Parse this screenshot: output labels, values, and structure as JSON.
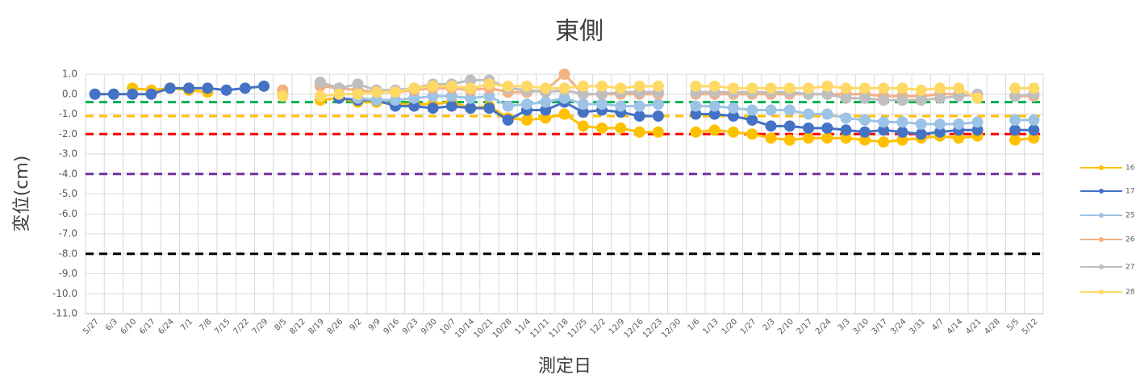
{
  "chart_data": {
    "type": "line",
    "title": "東側",
    "ylabel": "変位(cm)",
    "xlabel": "測定日",
    "categories": [
      "5/27",
      "6/3",
      "6/10",
      "6/17",
      "6/24",
      "7/1",
      "7/8",
      "7/15",
      "7/22",
      "7/29",
      "8/5",
      "8/12",
      "8/19",
      "8/26",
      "9/2",
      "9/9",
      "9/16",
      "9/23",
      "9/30",
      "10/7",
      "10/14",
      "10/21",
      "10/28",
      "11/4",
      "11/11",
      "11/18",
      "11/25",
      "12/2",
      "12/9",
      "12/16",
      "12/23",
      "12/30",
      "1/6",
      "1/13",
      "1/20",
      "1/27",
      "2/3",
      "2/10",
      "2/17",
      "2/24",
      "3/3",
      "3/10",
      "3/17",
      "3/24",
      "3/31",
      "4/7",
      "4/14",
      "4/21",
      "4/28",
      "5/5",
      "5/12"
    ],
    "ylim": [
      -11,
      1
    ],
    "yticks": [
      {
        "value": 1,
        "label": "1.0"
      },
      {
        "value": 0,
        "label": "0.0"
      },
      {
        "value": -1,
        "label": "-1.0"
      },
      {
        "value": -2,
        "label": "-2.0"
      },
      {
        "value": -3,
        "label": "-3.0"
      },
      {
        "value": -4,
        "label": "-4.0"
      },
      {
        "value": -5,
        "label": "-5.0"
      },
      {
        "value": -6,
        "label": "-6.0"
      },
      {
        "value": -7,
        "label": "-7.0"
      },
      {
        "value": -8,
        "label": "-8.0"
      },
      {
        "value": -9,
        "label": "-9.0"
      },
      {
        "value": -10,
        "label": "-10.0"
      },
      {
        "value": -11,
        "label": "-11.0"
      }
    ],
    "grid": true,
    "reference_lines": [
      {
        "value": -0.4,
        "color": "#00b050"
      },
      {
        "value": -1.1,
        "color": "#ffc000"
      },
      {
        "value": -2.0,
        "color": "#ff0000"
      },
      {
        "value": -4.0,
        "color": "#7030a0"
      },
      {
        "value": -8.0,
        "color": "#000000"
      }
    ],
    "series": [
      {
        "name": "16",
        "color": "#ffc000",
        "values": [
          null,
          null,
          0.3,
          0.2,
          0.3,
          0.2,
          0.1,
          null,
          null,
          null,
          0,
          null,
          -0.3,
          -0.2,
          -0.4,
          -0.4,
          -0.5,
          -0.5,
          -0.5,
          -0.4,
          -0.7,
          -0.6,
          -1.2,
          -1.3,
          -1.2,
          -1.0,
          -1.6,
          -1.7,
          -1.7,
          -1.9,
          -1.9,
          null,
          -1.9,
          -1.8,
          -1.9,
          -2.0,
          -2.2,
          -2.3,
          -2.2,
          -2.2,
          -2.2,
          -2.3,
          -2.4,
          -2.3,
          -2.2,
          -2.1,
          -2.2,
          -2.1,
          null,
          -2.3,
          -2.2
        ]
      },
      {
        "name": "17",
        "color": "#4472c4",
        "values": [
          0,
          0,
          0,
          0,
          0.3,
          0.3,
          0.3,
          0.2,
          0.3,
          0.4,
          null,
          null,
          null,
          -0.2,
          -0.3,
          -0.3,
          -0.6,
          -0.6,
          -0.7,
          -0.6,
          -0.7,
          -0.7,
          -1.3,
          -0.8,
          -0.8,
          -0.4,
          -0.9,
          -0.8,
          -0.9,
          -1.1,
          -1.1,
          null,
          -1.0,
          -1.0,
          -1.1,
          -1.3,
          -1.6,
          -1.6,
          -1.7,
          -1.7,
          -1.8,
          -1.9,
          -1.8,
          -1.9,
          -2.0,
          -1.9,
          -1.8,
          -1.8,
          null,
          -1.8,
          -1.8
        ]
      },
      {
        "name": "25",
        "color": "#9dc3e6",
        "values": [
          null,
          null,
          null,
          null,
          null,
          null,
          null,
          null,
          null,
          null,
          null,
          null,
          null,
          null,
          -0.2,
          -0.3,
          -0.3,
          -0.2,
          -0.1,
          -0.1,
          -0.2,
          -0.1,
          -0.6,
          -0.5,
          -0.4,
          -0.2,
          -0.5,
          -0.5,
          -0.6,
          -0.6,
          -0.5,
          null,
          -0.6,
          -0.6,
          -0.7,
          -0.8,
          -0.8,
          -0.8,
          -1.0,
          -1.0,
          -1.2,
          -1.3,
          -1.4,
          -1.4,
          -1.5,
          -1.5,
          -1.5,
          -1.4,
          null,
          -1.3,
          -1.3
        ]
      },
      {
        "name": "26",
        "color": "#f4b183",
        "values": [
          null,
          null,
          null,
          null,
          null,
          null,
          null,
          null,
          null,
          null,
          0.2,
          null,
          0.4,
          0.3,
          0.2,
          0.1,
          0.1,
          0.2,
          0.3,
          0.3,
          0.2,
          0.3,
          0.1,
          0.1,
          0.2,
          1.0,
          0,
          0,
          0,
          0,
          0,
          null,
          0,
          0,
          0,
          0,
          0,
          0,
          0,
          0,
          0,
          0,
          -0.1,
          -0.1,
          -0.1,
          0,
          0,
          -0.1,
          null,
          -0.1,
          -0.1
        ]
      },
      {
        "name": "27",
        "color": "#bfbfbf",
        "values": [
          null,
          null,
          null,
          null,
          null,
          null,
          null,
          null,
          null,
          null,
          null,
          null,
          0.6,
          0.3,
          0.5,
          0.2,
          0.2,
          0.3,
          0.5,
          0.5,
          0.7,
          0.7,
          0.3,
          0.2,
          0.1,
          0.2,
          0,
          0,
          0.1,
          0.1,
          0.1,
          null,
          0.1,
          0.1,
          0.1,
          0.1,
          0.1,
          0.1,
          0,
          0,
          -0.2,
          -0.2,
          -0.3,
          -0.3,
          -0.3,
          -0.2,
          -0.1,
          0,
          null,
          -0.1,
          0
        ]
      },
      {
        "name": "28",
        "color": "#ffd966",
        "values": [
          null,
          null,
          null,
          null,
          null,
          null,
          null,
          null,
          null,
          null,
          -0.1,
          null,
          -0.1,
          0,
          0,
          0.1,
          0.1,
          0.3,
          0.4,
          0.4,
          0.3,
          0.5,
          0.4,
          0.4,
          0.3,
          0.3,
          0.4,
          0.4,
          0.3,
          0.4,
          0.4,
          null,
          0.4,
          0.4,
          0.3,
          0.3,
          0.3,
          0.3,
          0.3,
          0.4,
          0.3,
          0.3,
          0.3,
          0.3,
          0.2,
          0.3,
          0.3,
          -0.2,
          null,
          0.3,
          0.3
        ]
      }
    ]
  }
}
